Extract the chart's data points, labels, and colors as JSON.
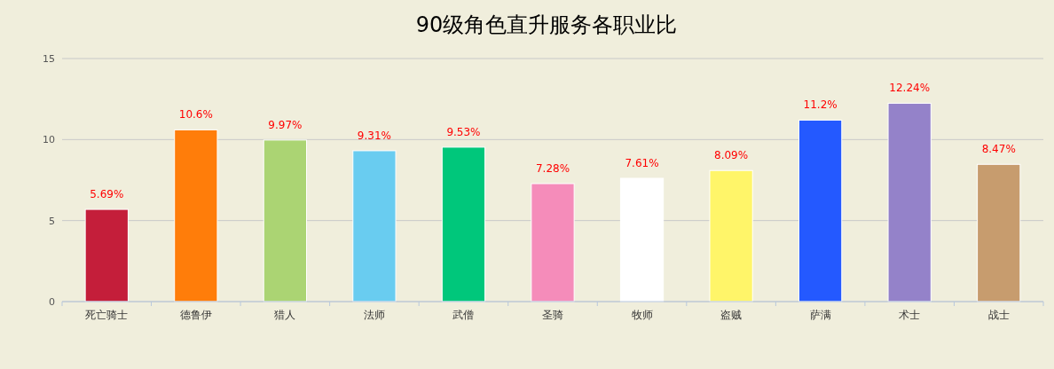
{
  "chart_data": {
    "type": "bar",
    "title": "90级角色直升服务各职业比",
    "categories": [
      "死亡骑士",
      "德鲁伊",
      "猎人",
      "法师",
      "武僧",
      "圣骑",
      "牧师",
      "盗贼",
      "萨满",
      "术士",
      "战士"
    ],
    "values": [
      5.69,
      10.6,
      9.97,
      9.31,
      9.53,
      7.28,
      7.61,
      8.09,
      11.2,
      12.24,
      8.47
    ],
    "colors": [
      "#c41e3a",
      "#ff7d0a",
      "#abd473",
      "#69ccf0",
      "#00c77b",
      "#f58cba",
      "#ffffff",
      "#fff569",
      "#2459ff",
      "#9482c9",
      "#c79c6e"
    ],
    "value_labels": [
      "5.69%",
      "10.6%",
      "9.97%",
      "9.31%",
      "9.53%",
      "7.28%",
      "7.61%",
      "8.09%",
      "11.2%",
      "12.24%",
      "8.47%"
    ],
    "ylim": [
      0,
      15
    ],
    "yticks": [
      0,
      5,
      10,
      15
    ],
    "grid": "y"
  }
}
